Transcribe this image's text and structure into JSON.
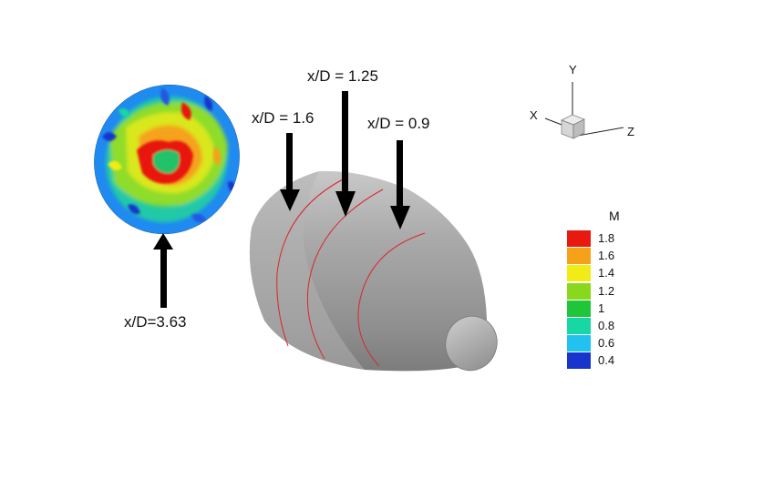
{
  "labels": {
    "inlet_station": "x/D=3.63",
    "station_a": "x/D = 1.6",
    "station_b": "x/D = 1.25",
    "station_c": "x/D = 0.9"
  },
  "axes_triad": {
    "x": "X",
    "y": "Y",
    "z": "Z"
  },
  "legend": {
    "title": "M",
    "entries": [
      {
        "label": "1.8",
        "color": "#e8190f"
      },
      {
        "label": "1.6",
        "color": "#f5a21a"
      },
      {
        "label": "1.4",
        "color": "#f2ec16"
      },
      {
        "label": "1.2",
        "color": "#8ad81d"
      },
      {
        "label": "1",
        "color": "#20c63a"
      },
      {
        "label": "0.8",
        "color": "#17d7a3"
      },
      {
        "label": "0.6",
        "color": "#22c2f0"
      },
      {
        "label": "0.4",
        "color": "#1735cc"
      }
    ]
  },
  "colors": {
    "section_lines": "#d9262e",
    "nozzle_surface": "#a8a8a8"
  }
}
